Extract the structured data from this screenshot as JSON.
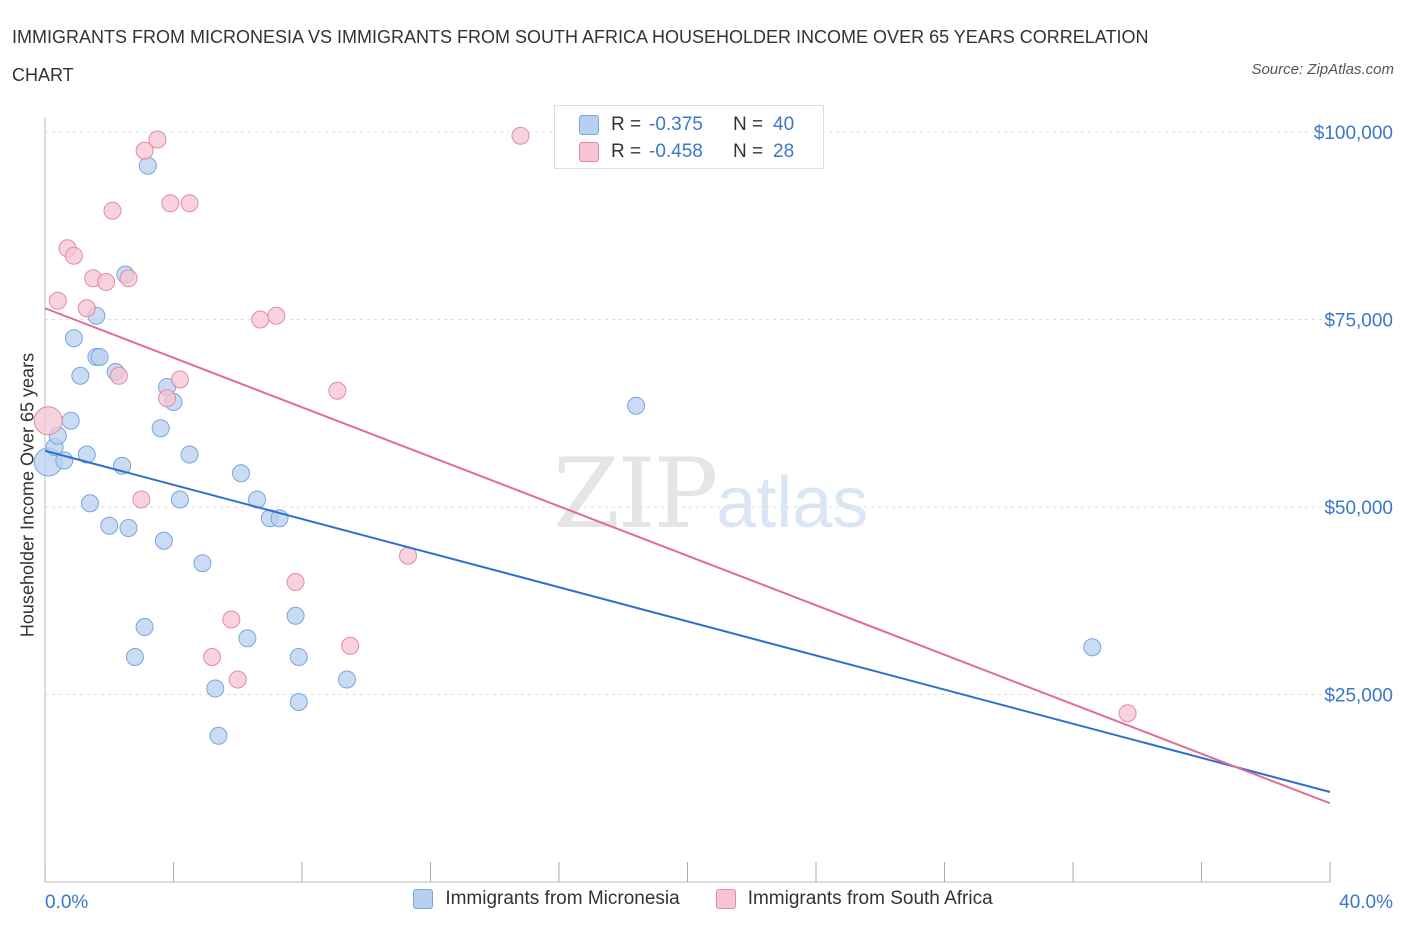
{
  "title": "IMMIGRANTS FROM MICRONESIA VS IMMIGRANTS FROM SOUTH AFRICA HOUSEHOLDER INCOME OVER 65 YEARS CORRELATION CHART",
  "source": "Source: ZipAtlas.com",
  "watermark": {
    "zip": "ZIP",
    "atlas": "atlas"
  },
  "legend_top": {
    "rows": [
      {
        "r_label": "R =",
        "r_value": "-0.375",
        "n_label": "N =",
        "n_value": "40"
      },
      {
        "r_label": "R =",
        "r_value": "-0.458",
        "n_label": "N =",
        "n_value": "28"
      }
    ]
  },
  "colors": {
    "blue_fill": "#b8d0f0",
    "blue_stroke": "#7aa6de",
    "blue_line": "#2f6fcf",
    "pink_fill": "#f6c4d3",
    "pink_stroke": "#e48aa8",
    "pink_line": "#e06c96",
    "axis_text": "#3a78c9",
    "grid": "#dddddd"
  },
  "chart_data": {
    "type": "scatter",
    "title": "IMMIGRANTS FROM MICRONESIA VS IMMIGRANTS FROM SOUTH AFRICA HOUSEHOLDER INCOME OVER 65 YEARS CORRELATION CHART",
    "xlabel": "",
    "ylabel": "Householder Income Over 65 years",
    "xlim": [
      0,
      40
    ],
    "ylim": [
      0,
      100000
    ],
    "x_tick_labels": [
      "0.0%",
      "40.0%"
    ],
    "y_ticks": [
      25000,
      50000,
      75000,
      100000
    ],
    "y_tick_labels": [
      "$25,000",
      "$50,000",
      "$75,000",
      "$100,000"
    ],
    "grid": true,
    "legend_position": "bottom-center",
    "series": [
      {
        "name": "Immigrants from Micronesia",
        "color": "#b8d0f0",
        "points": [
          [
            0.1,
            56000
          ],
          [
            0.3,
            58000
          ],
          [
            0.4,
            59500
          ],
          [
            0.6,
            56200
          ],
          [
            0.8,
            61500
          ],
          [
            0.9,
            72500
          ],
          [
            1.1,
            67500
          ],
          [
            1.3,
            57000
          ],
          [
            1.4,
            50500
          ],
          [
            1.6,
            70000
          ],
          [
            1.6,
            75500
          ],
          [
            1.7,
            70000
          ],
          [
            2.0,
            47500
          ],
          [
            2.2,
            68000
          ],
          [
            2.4,
            55500
          ],
          [
            2.5,
            81000
          ],
          [
            2.6,
            47200
          ],
          [
            2.8,
            30000
          ],
          [
            3.1,
            34000
          ],
          [
            3.2,
            95500
          ],
          [
            3.6,
            60500
          ],
          [
            3.7,
            45500
          ],
          [
            3.8,
            66000
          ],
          [
            4.0,
            64000
          ],
          [
            4.2,
            51000
          ],
          [
            4.5,
            57000
          ],
          [
            4.9,
            42500
          ],
          [
            5.3,
            25800
          ],
          [
            5.4,
            19500
          ],
          [
            6.1,
            54500
          ],
          [
            6.3,
            32500
          ],
          [
            6.6,
            51000
          ],
          [
            7.0,
            48500
          ],
          [
            7.3,
            48500
          ],
          [
            7.9,
            24000
          ],
          [
            7.8,
            35500
          ],
          [
            7.9,
            30000
          ],
          [
            9.4,
            27000
          ],
          [
            18.4,
            63500
          ],
          [
            32.6,
            31300
          ]
        ],
        "trendline": [
          [
            0,
            57500
          ],
          [
            40,
            12000
          ]
        ],
        "r": -0.375,
        "n": 40
      },
      {
        "name": "Immigrants from South Africa",
        "color": "#f6c4d3",
        "points": [
          [
            0.1,
            61500
          ],
          [
            0.4,
            77500
          ],
          [
            0.7,
            84500
          ],
          [
            0.9,
            83500
          ],
          [
            1.3,
            76500
          ],
          [
            1.5,
            80500
          ],
          [
            1.9,
            80000
          ],
          [
            2.1,
            89500
          ],
          [
            2.3,
            67500
          ],
          [
            2.6,
            80500
          ],
          [
            3.0,
            51000
          ],
          [
            3.1,
            97500
          ],
          [
            3.5,
            99000
          ],
          [
            3.8,
            64500
          ],
          [
            3.9,
            90500
          ],
          [
            4.2,
            67000
          ],
          [
            4.5,
            90500
          ],
          [
            5.2,
            30000
          ],
          [
            5.8,
            35000
          ],
          [
            6.0,
            27000
          ],
          [
            6.7,
            75000
          ],
          [
            7.2,
            75500
          ],
          [
            7.8,
            40000
          ],
          [
            9.1,
            65500
          ],
          [
            9.5,
            31500
          ],
          [
            11.3,
            43500
          ],
          [
            14.8,
            99500
          ],
          [
            33.7,
            22500
          ]
        ],
        "trendline": [
          [
            0,
            76500
          ],
          [
            40,
            10500
          ]
        ],
        "r": -0.458,
        "n": 28
      }
    ]
  }
}
